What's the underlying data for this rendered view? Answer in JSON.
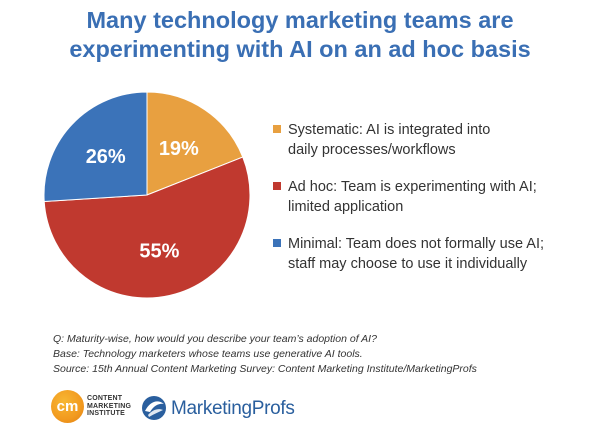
{
  "chart_data": {
    "type": "pie",
    "title_lines": [
      "Many technology marketing teams are",
      "experimenting with AI on an ad hoc basis"
    ],
    "slices": [
      {
        "label_lines": [
          "Systematic: AI is integrated into",
          "daily processes/workflows"
        ],
        "value": 19,
        "display": "19%",
        "color": "#e8a040"
      },
      {
        "label_lines": [
          "Ad hoc: Team is experimenting with AI;",
          "limited application"
        ],
        "value": 55,
        "display": "55%",
        "color": "#c0392f"
      },
      {
        "label_lines": [
          "Minimal: Team does not formally use AI;",
          "staff may choose to use it individually"
        ],
        "value": 26,
        "display": "26%",
        "color": "#3b73b9"
      }
    ],
    "legend_position": "right"
  },
  "notes": [
    "Q: Maturity-wise, how would you describe your team’s adoption of AI?",
    "Base: Technology marketers whose teams use generative AI tools.",
    "Source: 15th Annual Content Marketing Survey: Content Marketing Institute/MarketingProfs"
  ],
  "logos": {
    "cmi_mark": "cm",
    "cmi_lines": [
      "CONTENT",
      "MARKETING",
      "INSTITUTE"
    ],
    "mp_name": "MarketingProfs",
    "mp_icon": "marketingprofs-globe-icon"
  }
}
